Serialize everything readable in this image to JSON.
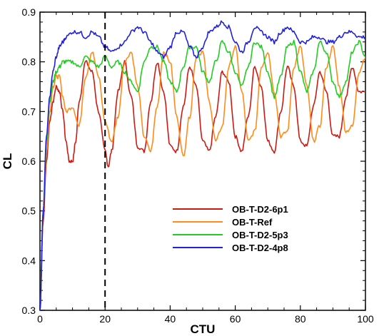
{
  "chart_data": {
    "type": "line",
    "xlabel": "CTU",
    "ylabel": "CL",
    "xlim": [
      0,
      100
    ],
    "ylim": [
      0.3,
      0.9
    ],
    "xticks": [
      0,
      20,
      40,
      60,
      80,
      100
    ],
    "yticks": [
      0.3,
      0.4,
      0.5,
      0.6,
      0.7,
      0.8,
      0.9
    ],
    "xtick_labels": [
      "0",
      "20",
      "40",
      "60",
      "80",
      "100"
    ],
    "ytick_labels": [
      "0.3",
      "0.4",
      "0.5",
      "0.6",
      "0.7",
      "0.8",
      "0.9"
    ],
    "grid": false,
    "legend_position": "lower-right",
    "reference_line": {
      "x": 20,
      "style": "dashed",
      "color": "#000000"
    },
    "series": [
      {
        "name": "OB-T-D2-6p1",
        "color": "#cc1a12",
        "x": [
          0,
          1,
          2,
          3,
          4,
          5,
          6,
          7,
          8,
          9,
          10,
          11,
          12,
          14,
          16,
          18,
          20,
          21,
          22,
          24,
          26,
          28,
          30,
          32,
          34,
          36,
          38,
          40,
          42,
          44,
          46,
          48,
          50,
          52,
          54,
          56,
          58,
          60,
          62,
          64,
          66,
          68,
          70,
          72,
          74,
          76,
          78,
          80,
          82,
          84,
          86,
          88,
          90,
          92,
          94,
          96,
          98,
          100
        ],
        "y": [
          0.3,
          0.48,
          0.6,
          0.68,
          0.72,
          0.75,
          0.74,
          0.7,
          0.64,
          0.6,
          0.6,
          0.64,
          0.72,
          0.8,
          0.78,
          0.7,
          0.62,
          0.59,
          0.62,
          0.74,
          0.8,
          0.73,
          0.63,
          0.62,
          0.72,
          0.8,
          0.74,
          0.63,
          0.62,
          0.71,
          0.79,
          0.75,
          0.64,
          0.62,
          0.69,
          0.78,
          0.76,
          0.65,
          0.62,
          0.69,
          0.79,
          0.75,
          0.64,
          0.62,
          0.7,
          0.79,
          0.75,
          0.64,
          0.63,
          0.71,
          0.78,
          0.74,
          0.65,
          0.65,
          0.73,
          0.79,
          0.74,
          0.74
        ]
      },
      {
        "name": "OB-T-Ref",
        "color": "#ff8c1a",
        "x": [
          0,
          1,
          2,
          3,
          4,
          5,
          6,
          7,
          8,
          10,
          12,
          14,
          16,
          18,
          20,
          22,
          24,
          26,
          28,
          30,
          32,
          34,
          36,
          38,
          40,
          42,
          44,
          46,
          48,
          50,
          52,
          54,
          56,
          58,
          60,
          62,
          64,
          66,
          68,
          70,
          72,
          74,
          76,
          78,
          80,
          82,
          84,
          86,
          88,
          90,
          92,
          94,
          96,
          98,
          100
        ],
        "y": [
          0.3,
          0.5,
          0.62,
          0.7,
          0.75,
          0.77,
          0.77,
          0.73,
          0.7,
          0.71,
          0.67,
          0.77,
          0.82,
          0.77,
          0.68,
          0.64,
          0.69,
          0.8,
          0.82,
          0.75,
          0.65,
          0.62,
          0.71,
          0.82,
          0.8,
          0.69,
          0.61,
          0.69,
          0.81,
          0.82,
          0.72,
          0.64,
          0.67,
          0.79,
          0.83,
          0.74,
          0.64,
          0.66,
          0.79,
          0.82,
          0.74,
          0.65,
          0.66,
          0.79,
          0.83,
          0.75,
          0.64,
          0.67,
          0.79,
          0.83,
          0.75,
          0.66,
          0.67,
          0.78,
          0.81
        ]
      },
      {
        "name": "OB-T-D2-5p3",
        "color": "#22cc22",
        "x": [
          0,
          1,
          2,
          3,
          4,
          5,
          6,
          7,
          8,
          10,
          12,
          14,
          16,
          18,
          20,
          22,
          24,
          26,
          28,
          30,
          32,
          34,
          36,
          38,
          40,
          42,
          44,
          46,
          48,
          50,
          52,
          54,
          56,
          58,
          60,
          62,
          64,
          66,
          68,
          70,
          72,
          74,
          76,
          78,
          80,
          82,
          84,
          86,
          88,
          90,
          92,
          94,
          96,
          98,
          100
        ],
        "y": [
          0.3,
          0.5,
          0.64,
          0.72,
          0.76,
          0.78,
          0.79,
          0.8,
          0.8,
          0.8,
          0.79,
          0.81,
          0.8,
          0.79,
          0.81,
          0.79,
          0.8,
          0.78,
          0.76,
          0.74,
          0.8,
          0.83,
          0.83,
          0.8,
          0.76,
          0.74,
          0.79,
          0.83,
          0.83,
          0.78,
          0.76,
          0.8,
          0.84,
          0.82,
          0.78,
          0.75,
          0.79,
          0.84,
          0.83,
          0.78,
          0.73,
          0.77,
          0.83,
          0.84,
          0.78,
          0.74,
          0.78,
          0.84,
          0.82,
          0.76,
          0.73,
          0.76,
          0.82,
          0.84,
          0.81
        ]
      },
      {
        "name": "OB-T-D2-4p8",
        "color": "#2020e0",
        "x": [
          0,
          1,
          2,
          3,
          4,
          5,
          6,
          7,
          8,
          10,
          12,
          14,
          16,
          18,
          20,
          22,
          24,
          26,
          28,
          30,
          32,
          34,
          36,
          38,
          40,
          42,
          44,
          46,
          48,
          50,
          52,
          54,
          56,
          58,
          60,
          62,
          64,
          66,
          68,
          70,
          72,
          74,
          76,
          78,
          80,
          82,
          84,
          86,
          88,
          90,
          92,
          94,
          96,
          98,
          100
        ],
        "y": [
          0.3,
          0.5,
          0.65,
          0.73,
          0.78,
          0.81,
          0.83,
          0.84,
          0.85,
          0.86,
          0.86,
          0.85,
          0.86,
          0.85,
          0.83,
          0.82,
          0.83,
          0.84,
          0.86,
          0.87,
          0.86,
          0.84,
          0.82,
          0.81,
          0.83,
          0.86,
          0.86,
          0.83,
          0.81,
          0.83,
          0.86,
          0.87,
          0.88,
          0.87,
          0.84,
          0.82,
          0.84,
          0.87,
          0.86,
          0.85,
          0.84,
          0.86,
          0.87,
          0.86,
          0.84,
          0.84,
          0.85,
          0.85,
          0.84,
          0.84,
          0.85,
          0.86,
          0.86,
          0.85,
          0.85
        ]
      }
    ]
  }
}
